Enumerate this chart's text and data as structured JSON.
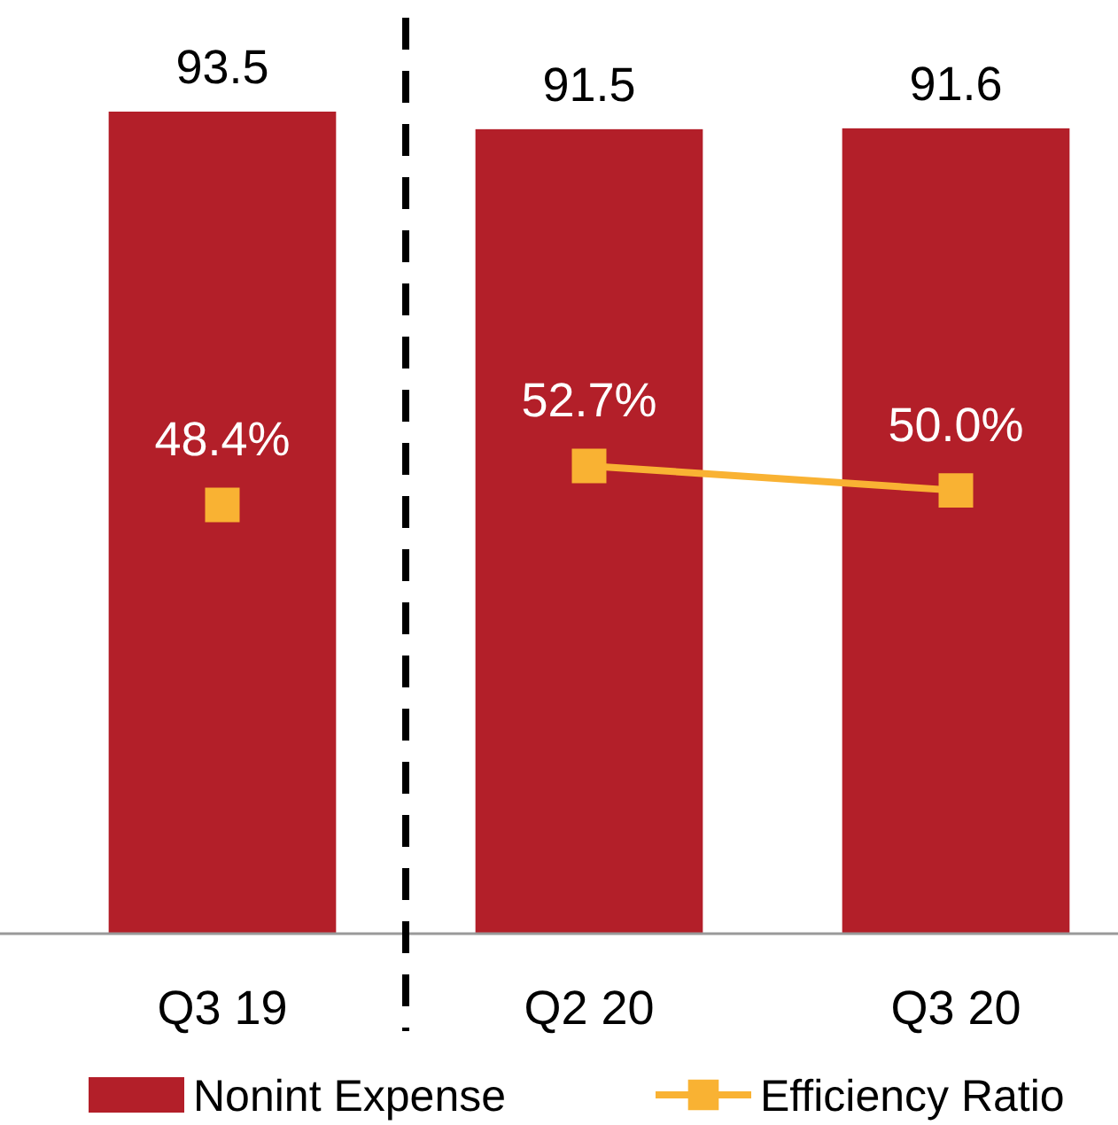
{
  "chart_data": {
    "type": "bar",
    "categories": [
      "Q3 19",
      "Q2 20",
      "Q3 20"
    ],
    "tick_labels": "x",
    "legend": "bottom",
    "marker": "square",
    "series": [
      {
        "name": "Nonint Expense",
        "color": "#b31f29",
        "values": [
          93.5,
          91.5,
          91.6
        ],
        "value_labels": [
          "93.5",
          "91.5",
          "91.6"
        ]
      },
      {
        "name": "Efficiency Ratio",
        "type": "line",
        "axis": "y2",
        "color": "#f9b233",
        "values": [
          null,
          52.7,
          50.0
        ],
        "value_labels": [
          null,
          "52.7%",
          "50.0%"
        ]
      },
      {
        "type": "scatter",
        "axis": "y2",
        "color": "#f9b233",
        "values": [
          48.4,
          null,
          null
        ],
        "value_labels": [
          "48.4%",
          null,
          null
        ]
      }
    ]
  }
}
